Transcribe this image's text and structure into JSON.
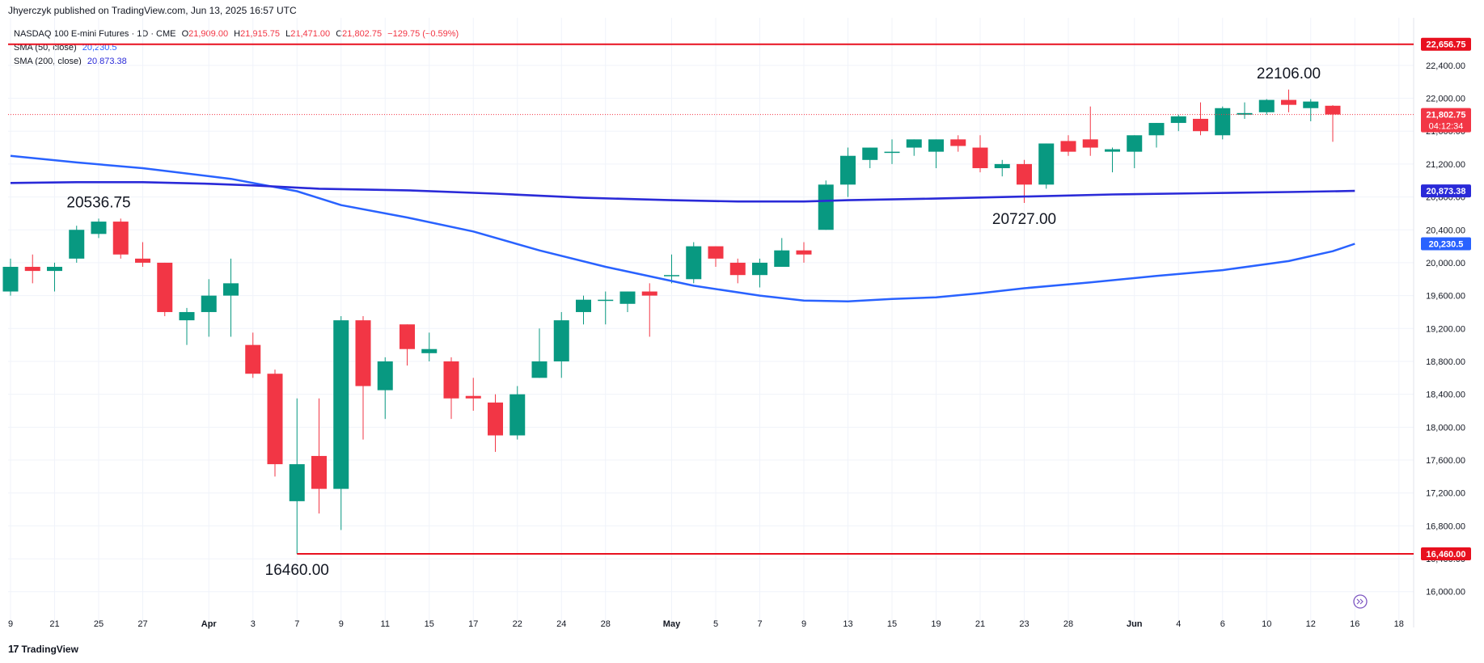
{
  "header": {
    "published": "Jhyerczyk published on TradingView.com, Jun 13, 2025 16:57 UTC"
  },
  "legend": {
    "symbol": "NASDAQ 100 E-mini Futures · 1D · CME",
    "o_label": "O",
    "o_value": "21,909.00",
    "h_label": "H",
    "h_value": "21,915.75",
    "l_label": "L",
    "l_value": "21,471.00",
    "c_label": "C",
    "c_value": "21,802.75",
    "change": "−129.75 (−0.59%)",
    "sma50_label": "SMA (50, close)",
    "sma50_value": "20,230.5",
    "sma200_label": "SMA (200, close)",
    "sma200_value": "20,873.38"
  },
  "footer": {
    "brand": "TradingView",
    "logo": "17"
  },
  "colors": {
    "up": "#089981",
    "down": "#f23645",
    "sma50": "#2962ff",
    "sma200": "#2a2ad8",
    "hline": "#e8101f",
    "grid": "#f0f3fa",
    "text": "#131722"
  },
  "chart_data": {
    "type": "candlestick",
    "title": "NASDAQ 100 E-mini Futures · 1D · CME",
    "ylim": [
      15850,
      22900
    ],
    "y_ticks": [
      16000,
      16400,
      16800,
      17200,
      17600,
      18000,
      18400,
      18800,
      19200,
      19600,
      20000,
      20400,
      20800,
      21200,
      21600,
      22000,
      22400
    ],
    "y_tick_labels": [
      "16,000.00",
      "16,400.00",
      "16,800.00",
      "17,200.00",
      "17,600.00",
      "18,000.00",
      "18,400.00",
      "18,800.00",
      "19,200.00",
      "19,600.00",
      "20,000.00",
      "20,400.00",
      "20,800.00",
      "21,200.00",
      "21,600.00",
      "22,000.00",
      "22,400.00"
    ],
    "x_ticks": [
      {
        "label": "9",
        "i": 0
      },
      {
        "label": "21",
        "i": 2
      },
      {
        "label": "25",
        "i": 4
      },
      {
        "label": "27",
        "i": 6
      },
      {
        "label": "Apr",
        "i": 9,
        "bold": true
      },
      {
        "label": "3",
        "i": 11
      },
      {
        "label": "7",
        "i": 13
      },
      {
        "label": "9",
        "i": 15
      },
      {
        "label": "11",
        "i": 17
      },
      {
        "label": "15",
        "i": 19
      },
      {
        "label": "17",
        "i": 21
      },
      {
        "label": "22",
        "i": 23
      },
      {
        "label": "24",
        "i": 25
      },
      {
        "label": "28",
        "i": 27
      },
      {
        "label": "May",
        "i": 30,
        "bold": true
      },
      {
        "label": "5",
        "i": 32
      },
      {
        "label": "7",
        "i": 34
      },
      {
        "label": "9",
        "i": 36
      },
      {
        "label": "13",
        "i": 38
      },
      {
        "label": "15",
        "i": 40
      },
      {
        "label": "19",
        "i": 42
      },
      {
        "label": "21",
        "i": 44
      },
      {
        "label": "23",
        "i": 46
      },
      {
        "label": "28",
        "i": 48
      },
      {
        "label": "Jun",
        "i": 51,
        "bold": true
      },
      {
        "label": "4",
        "i": 53
      },
      {
        "label": "6",
        "i": 55
      },
      {
        "label": "10",
        "i": 57
      },
      {
        "label": "12",
        "i": 59
      },
      {
        "label": "16",
        "i": 61
      },
      {
        "label": "18",
        "i": 63
      }
    ],
    "candles": [
      {
        "o": 19650,
        "h": 20050,
        "l": 19600,
        "c": 19950
      },
      {
        "o": 19950,
        "h": 20100,
        "l": 19750,
        "c": 19900
      },
      {
        "o": 19900,
        "h": 20000,
        "l": 19650,
        "c": 19950
      },
      {
        "o": 20050,
        "h": 20450,
        "l": 20000,
        "c": 20400
      },
      {
        "o": 20350,
        "h": 20536.75,
        "l": 20300,
        "c": 20500
      },
      {
        "o": 20500,
        "h": 20536.75,
        "l": 20050,
        "c": 20100
      },
      {
        "o": 20050,
        "h": 20250,
        "l": 19950,
        "c": 20000
      },
      {
        "o": 20000,
        "h": 20000,
        "l": 19350,
        "c": 19400
      },
      {
        "o": 19300,
        "h": 19450,
        "l": 19000,
        "c": 19400
      },
      {
        "o": 19400,
        "h": 19800,
        "l": 19100,
        "c": 19600
      },
      {
        "o": 19600,
        "h": 20050,
        "l": 19100,
        "c": 19750
      },
      {
        "o": 19000,
        "h": 19150,
        "l": 18600,
        "c": 18650
      },
      {
        "o": 18650,
        "h": 18700,
        "l": 17400,
        "c": 17550
      },
      {
        "o": 17100,
        "h": 18350,
        "l": 16460,
        "c": 17550
      },
      {
        "o": 17650,
        "h": 18350,
        "l": 16950,
        "c": 17250
      },
      {
        "o": 17250,
        "h": 19350,
        "l": 16750,
        "c": 19300
      },
      {
        "o": 19300,
        "h": 19350,
        "l": 17850,
        "c": 18500
      },
      {
        "o": 18450,
        "h": 18850,
        "l": 18100,
        "c": 18800
      },
      {
        "o": 19250,
        "h": 19250,
        "l": 18750,
        "c": 18950
      },
      {
        "o": 18900,
        "h": 19150,
        "l": 18800,
        "c": 18950
      },
      {
        "o": 18800,
        "h": 18850,
        "l": 18100,
        "c": 18350
      },
      {
        "o": 18380,
        "h": 18600,
        "l": 18200,
        "c": 18350
      },
      {
        "o": 18300,
        "h": 18400,
        "l": 17700,
        "c": 17900
      },
      {
        "o": 17900,
        "h": 18500,
        "l": 17850,
        "c": 18400
      },
      {
        "o": 18600,
        "h": 19200,
        "l": 18600,
        "c": 18800
      },
      {
        "o": 18800,
        "h": 19400,
        "l": 18600,
        "c": 19300
      },
      {
        "o": 19400,
        "h": 19600,
        "l": 19250,
        "c": 19550
      },
      {
        "o": 19550,
        "h": 19650,
        "l": 19250,
        "c": 19550
      },
      {
        "o": 19500,
        "h": 19650,
        "l": 19400,
        "c": 19650
      },
      {
        "o": 19650,
        "h": 19750,
        "l": 19100,
        "c": 19600
      },
      {
        "o": 19850,
        "h": 20100,
        "l": 19750,
        "c": 19850
      },
      {
        "o": 19800,
        "h": 20250,
        "l": 19750,
        "c": 20200
      },
      {
        "o": 20200,
        "h": 20200,
        "l": 19950,
        "c": 20050
      },
      {
        "o": 20000,
        "h": 20050,
        "l": 19750,
        "c": 19850
      },
      {
        "o": 19850,
        "h": 20050,
        "l": 19700,
        "c": 20000
      },
      {
        "o": 19950,
        "h": 20300,
        "l": 19950,
        "c": 20150
      },
      {
        "o": 20150,
        "h": 20250,
        "l": 20000,
        "c": 20100
      },
      {
        "o": 20400,
        "h": 21000,
        "l": 20400,
        "c": 20950
      },
      {
        "o": 20950,
        "h": 21400,
        "l": 20800,
        "c": 21300
      },
      {
        "o": 21250,
        "h": 21400,
        "l": 21150,
        "c": 21400
      },
      {
        "o": 21350,
        "h": 21500,
        "l": 21200,
        "c": 21350
      },
      {
        "o": 21400,
        "h": 21500,
        "l": 21300,
        "c": 21500
      },
      {
        "o": 21350,
        "h": 21500,
        "l": 21150,
        "c": 21500
      },
      {
        "o": 21500,
        "h": 21550,
        "l": 21350,
        "c": 21420
      },
      {
        "o": 21400,
        "h": 21550,
        "l": 21100,
        "c": 21150
      },
      {
        "o": 21150,
        "h": 21250,
        "l": 21050,
        "c": 21200
      },
      {
        "o": 21200,
        "h": 21250,
        "l": 20727,
        "c": 20950
      },
      {
        "o": 20950,
        "h": 21450,
        "l": 20900,
        "c": 21450
      },
      {
        "o": 21480,
        "h": 21550,
        "l": 21300,
        "c": 21350
      },
      {
        "o": 21500,
        "h": 21900,
        "l": 21300,
        "c": 21400
      },
      {
        "o": 21350,
        "h": 21400,
        "l": 21100,
        "c": 21380
      },
      {
        "o": 21350,
        "h": 21550,
        "l": 21150,
        "c": 21550
      },
      {
        "o": 21550,
        "h": 21700,
        "l": 21400,
        "c": 21700
      },
      {
        "o": 21700,
        "h": 21800,
        "l": 21600,
        "c": 21780
      },
      {
        "o": 21750,
        "h": 21950,
        "l": 21550,
        "c": 21600
      },
      {
        "o": 21550,
        "h": 21900,
        "l": 21500,
        "c": 21880
      },
      {
        "o": 21800,
        "h": 21950,
        "l": 21750,
        "c": 21820
      },
      {
        "o": 21830,
        "h": 21990,
        "l": 21800,
        "c": 21980
      },
      {
        "o": 21980,
        "h": 22106,
        "l": 21830,
        "c": 21920
      },
      {
        "o": 21880,
        "h": 21990,
        "l": 21720,
        "c": 21960
      },
      {
        "o": 21909,
        "h": 21915.75,
        "l": 21471,
        "c": 21802.75
      }
    ],
    "series": [
      {
        "name": "SMA (50, close)",
        "type": "line",
        "points": [
          [
            0,
            21300
          ],
          [
            3,
            21220
          ],
          [
            6,
            21150
          ],
          [
            10,
            21020
          ],
          [
            13,
            20870
          ],
          [
            15,
            20700
          ],
          [
            18,
            20550
          ],
          [
            21,
            20380
          ],
          [
            24,
            20150
          ],
          [
            27,
            19950
          ],
          [
            31,
            19720
          ],
          [
            34,
            19600
          ],
          [
            36,
            19540
          ],
          [
            38,
            19530
          ],
          [
            40,
            19560
          ],
          [
            42,
            19580
          ],
          [
            44,
            19630
          ],
          [
            46,
            19690
          ],
          [
            49,
            19760
          ],
          [
            52,
            19840
          ],
          [
            55,
            19910
          ],
          [
            58,
            20020
          ],
          [
            60,
            20140
          ],
          [
            61,
            20230.5
          ]
        ]
      },
      {
        "name": "SMA (200, close)",
        "type": "line",
        "points": [
          [
            0,
            20970
          ],
          [
            3,
            20980
          ],
          [
            6,
            20980
          ],
          [
            9,
            20960
          ],
          [
            11,
            20940
          ],
          [
            14,
            20900
          ],
          [
            18,
            20880
          ],
          [
            22,
            20840
          ],
          [
            26,
            20790
          ],
          [
            30,
            20760
          ],
          [
            33,
            20745
          ],
          [
            36,
            20745
          ],
          [
            38,
            20760
          ],
          [
            42,
            20780
          ],
          [
            46,
            20805
          ],
          [
            50,
            20830
          ],
          [
            54,
            20845
          ],
          [
            58,
            20860
          ],
          [
            61,
            20873.38
          ]
        ]
      }
    ],
    "hlines": [
      {
        "value": 22656.75,
        "label": "22,656.75",
        "from": 0
      },
      {
        "value": 16460.0,
        "label": "16,460.00",
        "from": 13
      }
    ],
    "current_price": {
      "value": 21802.75,
      "label": "21,802.75",
      "countdown": "04:12:34"
    },
    "price_tags": [
      {
        "value": 20873.38,
        "label": "20,873.38",
        "series": "SMA (200, close)"
      },
      {
        "value": 20230.5,
        "label": "20,230.5",
        "series": "SMA (50, close)"
      }
    ],
    "annotations": [
      {
        "text": "20536.75",
        "i": 4,
        "value": 20536.75,
        "pos": "above"
      },
      {
        "text": "16460.00",
        "i": 13,
        "value": 16460.0,
        "pos": "below"
      },
      {
        "text": "20727.00",
        "i": 46,
        "value": 20727.0,
        "pos": "below"
      },
      {
        "text": "22106.00",
        "i": 58,
        "value": 22106.0,
        "pos": "above"
      }
    ]
  }
}
